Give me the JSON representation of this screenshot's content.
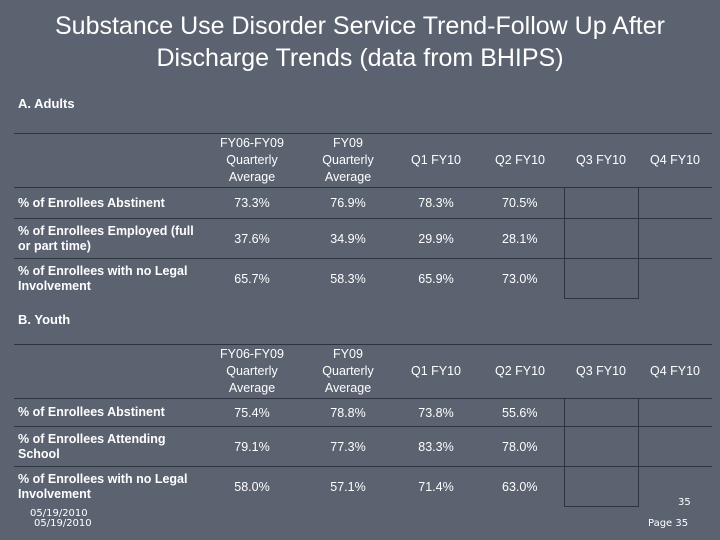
{
  "title": "Substance Use Disorder Service Trend-Follow Up After Discharge Trends (data from BHIPS)",
  "columns": [
    [
      "FY06-FY09",
      "Quarterly",
      "Average"
    ],
    [
      "FY09",
      "Quarterly",
      "Average"
    ],
    [
      "Q1 FY10"
    ],
    [
      "Q2 FY10"
    ],
    [
      "Q3 FY10"
    ],
    [
      "Q4 FY10"
    ]
  ],
  "adults": {
    "label": "A. Adults",
    "rows": [
      {
        "label": "% of Enrollees Abstinent",
        "values": [
          "73.3%",
          "76.9%",
          "78.3%",
          "70.5%",
          "",
          ""
        ]
      },
      {
        "label": "% of Enrollees Employed (full or part time)",
        "values": [
          "37.6%",
          "34.9%",
          "29.9%",
          "28.1%",
          "",
          ""
        ]
      },
      {
        "label": "% of Enrollees with no Legal Involvement",
        "values": [
          "65.7%",
          "58.3%",
          "65.9%",
          "73.0%",
          "",
          ""
        ]
      }
    ]
  },
  "youth": {
    "label": "B. Youth",
    "rows": [
      {
        "label": "% of Enrollees Abstinent",
        "values": [
          "75.4%",
          "78.8%",
          "73.8%",
          "55.6%",
          "",
          ""
        ]
      },
      {
        "label": "% of Enrollees Attending School",
        "values": [
          "79.1%",
          "77.3%",
          "83.3%",
          "78.0%",
          "",
          ""
        ]
      },
      {
        "label": "% of Enrollees with no Legal Involvement",
        "values": [
          "58.0%",
          "57.1%",
          "71.4%",
          "63.0%",
          "",
          ""
        ]
      }
    ]
  },
  "footer": {
    "date_overlap": "05/19/2010",
    "slide_number": "35",
    "date": "05/19/2010",
    "page": "Page 35"
  }
}
